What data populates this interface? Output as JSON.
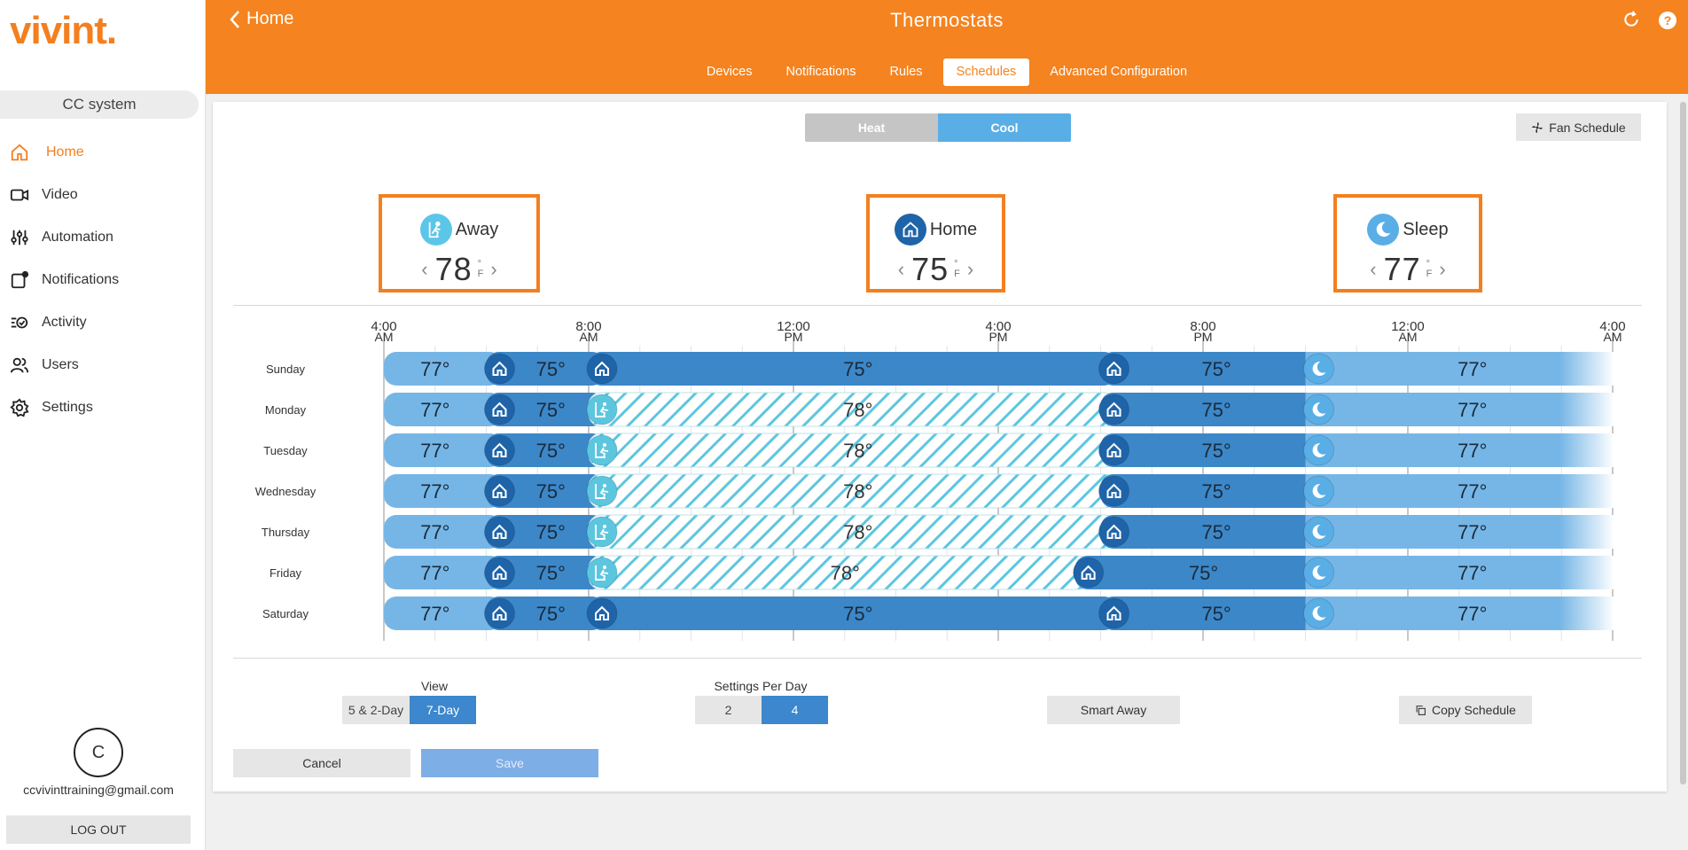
{
  "sidebar": {
    "logo": "vivint.",
    "system_name": "CC system",
    "items": [
      {
        "label": "Home",
        "icon": "home-icon"
      },
      {
        "label": "Video",
        "icon": "video-icon"
      },
      {
        "label": "Automation",
        "icon": "automation-icon"
      },
      {
        "label": "Notifications",
        "icon": "notifications-icon"
      },
      {
        "label": "Activity",
        "icon": "activity-icon"
      },
      {
        "label": "Users",
        "icon": "users-icon"
      },
      {
        "label": "Settings",
        "icon": "settings-icon"
      }
    ],
    "active_item": "Home",
    "avatar_initial": "C",
    "email": "ccvivinttraining@gmail.com",
    "logout": "LOG OUT"
  },
  "header": {
    "back_label": "Home",
    "title": "Thermostats",
    "tabs": [
      "Devices",
      "Notifications",
      "Rules",
      "Schedules",
      "Advanced Configuration"
    ],
    "active_tab": "Schedules"
  },
  "mode": {
    "heat": "Heat",
    "cool": "Cool",
    "selected": "Cool"
  },
  "fan_schedule": "Fan Schedule",
  "presets": [
    {
      "name": "Away",
      "value": "78",
      "unit_deg": "°",
      "unit": "F",
      "icon": "away-icon"
    },
    {
      "name": "Home",
      "value": "75",
      "unit_deg": "°",
      "unit": "F",
      "icon": "home-icon"
    },
    {
      "name": "Sleep",
      "value": "77",
      "unit_deg": "°",
      "unit": "F",
      "icon": "sleep-icon"
    }
  ],
  "schedule": {
    "time_labels": [
      {
        "time": "4:00",
        "ampm": "AM"
      },
      {
        "time": "8:00",
        "ampm": "AM"
      },
      {
        "time": "12:00",
        "ampm": "PM"
      },
      {
        "time": "4:00",
        "ampm": "PM"
      },
      {
        "time": "8:00",
        "ampm": "PM"
      },
      {
        "time": "12:00",
        "ampm": "AM"
      },
      {
        "time": "4:00",
        "ampm": "AM"
      }
    ],
    "days": [
      {
        "name": "Sunday",
        "segments": [
          {
            "mode": "sleep",
            "start": 4,
            "end": 6,
            "temp": "77°"
          },
          {
            "mode": "home",
            "start": 6,
            "end": 8,
            "temp": "75°"
          },
          {
            "mode": "home",
            "start": 8,
            "end": 18,
            "temp": "75°"
          },
          {
            "mode": "home",
            "start": 18,
            "end": 22,
            "temp": "75°"
          },
          {
            "mode": "sleep",
            "start": 22,
            "end": 28,
            "temp": "77°"
          }
        ]
      },
      {
        "name": "Monday",
        "segments": [
          {
            "mode": "sleep",
            "start": 4,
            "end": 6,
            "temp": "77°"
          },
          {
            "mode": "home",
            "start": 6,
            "end": 8,
            "temp": "75°"
          },
          {
            "mode": "away",
            "start": 8,
            "end": 18,
            "temp": "78°"
          },
          {
            "mode": "home",
            "start": 18,
            "end": 22,
            "temp": "75°"
          },
          {
            "mode": "sleep",
            "start": 22,
            "end": 28,
            "temp": "77°"
          }
        ]
      },
      {
        "name": "Tuesday",
        "segments": [
          {
            "mode": "sleep",
            "start": 4,
            "end": 6,
            "temp": "77°"
          },
          {
            "mode": "home",
            "start": 6,
            "end": 8,
            "temp": "75°"
          },
          {
            "mode": "away",
            "start": 8,
            "end": 18,
            "temp": "78°"
          },
          {
            "mode": "home",
            "start": 18,
            "end": 22,
            "temp": "75°"
          },
          {
            "mode": "sleep",
            "start": 22,
            "end": 28,
            "temp": "77°"
          }
        ]
      },
      {
        "name": "Wednesday",
        "segments": [
          {
            "mode": "sleep",
            "start": 4,
            "end": 6,
            "temp": "77°"
          },
          {
            "mode": "home",
            "start": 6,
            "end": 8,
            "temp": "75°"
          },
          {
            "mode": "away",
            "start": 8,
            "end": 18,
            "temp": "78°"
          },
          {
            "mode": "home",
            "start": 18,
            "end": 22,
            "temp": "75°"
          },
          {
            "mode": "sleep",
            "start": 22,
            "end": 28,
            "temp": "77°"
          }
        ]
      },
      {
        "name": "Thursday",
        "segments": [
          {
            "mode": "sleep",
            "start": 4,
            "end": 6,
            "temp": "77°"
          },
          {
            "mode": "home",
            "start": 6,
            "end": 8,
            "temp": "75°"
          },
          {
            "mode": "away",
            "start": 8,
            "end": 18,
            "temp": "78°"
          },
          {
            "mode": "home",
            "start": 18,
            "end": 22,
            "temp": "75°"
          },
          {
            "mode": "sleep",
            "start": 22,
            "end": 28,
            "temp": "77°"
          }
        ]
      },
      {
        "name": "Friday",
        "segments": [
          {
            "mode": "sleep",
            "start": 4,
            "end": 6,
            "temp": "77°"
          },
          {
            "mode": "home",
            "start": 6,
            "end": 8,
            "temp": "75°"
          },
          {
            "mode": "away",
            "start": 8,
            "end": 17.5,
            "temp": "78°"
          },
          {
            "mode": "home",
            "start": 17.5,
            "end": 22,
            "temp": "75°"
          },
          {
            "mode": "sleep",
            "start": 22,
            "end": 28,
            "temp": "77°"
          }
        ]
      },
      {
        "name": "Saturday",
        "segments": [
          {
            "mode": "sleep",
            "start": 4,
            "end": 6,
            "temp": "77°"
          },
          {
            "mode": "home",
            "start": 6,
            "end": 8,
            "temp": "75°"
          },
          {
            "mode": "home",
            "start": 8,
            "end": 18,
            "temp": "75°"
          },
          {
            "mode": "home",
            "start": 18,
            "end": 22,
            "temp": "75°"
          },
          {
            "mode": "sleep",
            "start": 22,
            "end": 28,
            "temp": "77°"
          }
        ]
      }
    ]
  },
  "view": {
    "label": "View",
    "options": [
      "5 & 2-Day",
      "7-Day"
    ],
    "selected": "7-Day"
  },
  "settings_per_day": {
    "label": "Settings Per Day",
    "options": [
      "2",
      "4"
    ],
    "selected": "4"
  },
  "smart_away": "Smart Away",
  "copy_schedule": "Copy Schedule",
  "cancel": "Cancel",
  "save": "Save",
  "colors": {
    "brand": "#f5831f",
    "home_dark": "#3c87c8",
    "home_circle": "#1f64a8",
    "sleep_light": "#76b6e6",
    "sleep_circle": "#5aaee6",
    "away_stripe": "#5cc6df"
  }
}
